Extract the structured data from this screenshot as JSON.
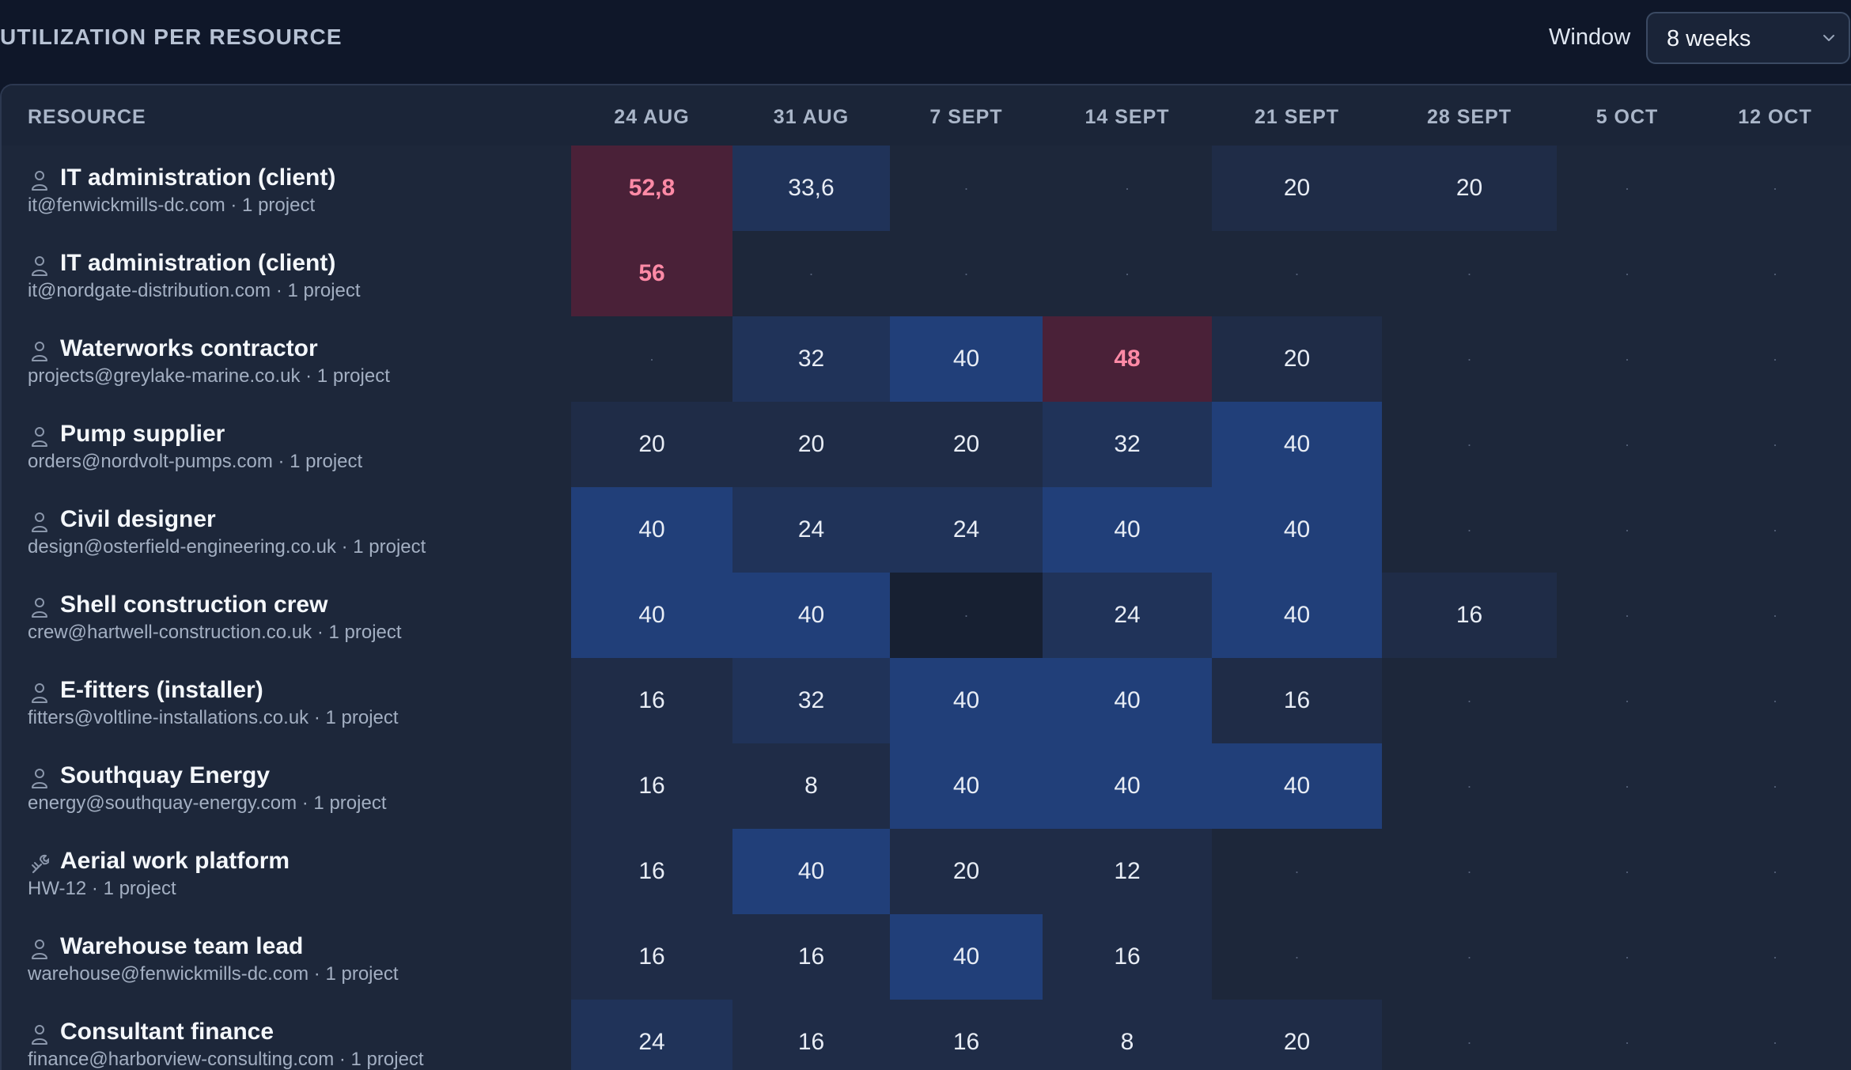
{
  "header": {
    "title": "UTILIZATION PER RESOURCE",
    "window_label": "Window",
    "window_value": "8 weeks",
    "window_icon": "chevron-down-icon"
  },
  "table": {
    "resource_header": "RESOURCE",
    "weeks": [
      "24 AUG",
      "31 AUG",
      "7 SEPT",
      "14 SEPT",
      "21 SEPT",
      "28 SEPT",
      "5 OCT",
      "12 OCT"
    ],
    "empty_marker": "·",
    "colors": {
      "empty": "#1d273a",
      "low": "#1f2c47",
      "mid": "#203359",
      "high": "#213f79",
      "over": "#4a2138",
      "over_text": "#ff8aa6"
    },
    "rows": [
      {
        "icon": "person-icon",
        "name": "IT administration (client)",
        "sub": "it@fenwickmills-dc.com · 1 project",
        "cells": [
          {
            "v": "52,8",
            "l": "over"
          },
          {
            "v": "33,6",
            "l": "mid"
          },
          {
            "v": "·",
            "l": "empty"
          },
          {
            "v": "·",
            "l": "empty"
          },
          {
            "v": "20",
            "l": "low"
          },
          {
            "v": "20",
            "l": "low"
          },
          {
            "v": "·",
            "l": "empty"
          },
          {
            "v": "·",
            "l": "empty"
          }
        ]
      },
      {
        "icon": "person-icon",
        "name": "IT administration (client)",
        "sub": "it@nordgate-distribution.com · 1 project",
        "cells": [
          {
            "v": "56",
            "l": "over"
          },
          {
            "v": "·",
            "l": "empty"
          },
          {
            "v": "·",
            "l": "empty"
          },
          {
            "v": "·",
            "l": "empty"
          },
          {
            "v": "·",
            "l": "empty"
          },
          {
            "v": "·",
            "l": "empty"
          },
          {
            "v": "·",
            "l": "empty"
          },
          {
            "v": "·",
            "l": "empty"
          }
        ]
      },
      {
        "icon": "person-icon",
        "name": "Waterworks contractor",
        "sub": "projects@greylake-marine.co.uk · 1 project",
        "cells": [
          {
            "v": "·",
            "l": "empty"
          },
          {
            "v": "32",
            "l": "mid"
          },
          {
            "v": "40",
            "l": "high"
          },
          {
            "v": "48",
            "l": "over"
          },
          {
            "v": "20",
            "l": "low"
          },
          {
            "v": "·",
            "l": "empty"
          },
          {
            "v": "·",
            "l": "empty"
          },
          {
            "v": "·",
            "l": "empty"
          }
        ]
      },
      {
        "icon": "person-icon",
        "name": "Pump supplier",
        "sub": "orders@nordvolt-pumps.com · 1 project",
        "cells": [
          {
            "v": "20",
            "l": "low"
          },
          {
            "v": "20",
            "l": "low"
          },
          {
            "v": "20",
            "l": "low"
          },
          {
            "v": "32",
            "l": "mid"
          },
          {
            "v": "40",
            "l": "high"
          },
          {
            "v": "·",
            "l": "empty"
          },
          {
            "v": "·",
            "l": "empty"
          },
          {
            "v": "·",
            "l": "empty"
          }
        ]
      },
      {
        "icon": "person-icon",
        "name": "Civil designer",
        "sub": "design@osterfield-engineering.co.uk · 1 project",
        "cells": [
          {
            "v": "40",
            "l": "high"
          },
          {
            "v": "24",
            "l": "mid"
          },
          {
            "v": "24",
            "l": "mid"
          },
          {
            "v": "40",
            "l": "high"
          },
          {
            "v": "40",
            "l": "high"
          },
          {
            "v": "·",
            "l": "empty"
          },
          {
            "v": "·",
            "l": "empty"
          },
          {
            "v": "·",
            "l": "empty"
          }
        ]
      },
      {
        "icon": "person-icon",
        "name": "Shell construction crew",
        "sub": "crew@hartwell-construction.co.uk · 1 project",
        "cells": [
          {
            "v": "40",
            "l": "high"
          },
          {
            "v": "40",
            "l": "high"
          },
          {
            "v": "·",
            "l": "blank"
          },
          {
            "v": "24",
            "l": "mid"
          },
          {
            "v": "40",
            "l": "high"
          },
          {
            "v": "16",
            "l": "low"
          },
          {
            "v": "·",
            "l": "empty"
          },
          {
            "v": "·",
            "l": "empty"
          }
        ]
      },
      {
        "icon": "person-icon",
        "name": "E-fitters (installer)",
        "sub": "fitters@voltline-installations.co.uk · 1 project",
        "cells": [
          {
            "v": "16",
            "l": "low"
          },
          {
            "v": "32",
            "l": "mid"
          },
          {
            "v": "40",
            "l": "high"
          },
          {
            "v": "40",
            "l": "high"
          },
          {
            "v": "16",
            "l": "low"
          },
          {
            "v": "·",
            "l": "empty"
          },
          {
            "v": "·",
            "l": "empty"
          },
          {
            "v": "·",
            "l": "empty"
          }
        ]
      },
      {
        "icon": "person-icon",
        "name": "Southquay Energy",
        "sub": "energy@southquay-energy.com · 1 project",
        "cells": [
          {
            "v": "16",
            "l": "low"
          },
          {
            "v": "8",
            "l": "low"
          },
          {
            "v": "40",
            "l": "high"
          },
          {
            "v": "40",
            "l": "high"
          },
          {
            "v": "40",
            "l": "high"
          },
          {
            "v": "·",
            "l": "empty"
          },
          {
            "v": "·",
            "l": "empty"
          },
          {
            "v": "·",
            "l": "empty"
          }
        ]
      },
      {
        "icon": "tool-icon",
        "name": "Aerial work platform",
        "sub": "HW-12 · 1 project",
        "cells": [
          {
            "v": "16",
            "l": "low"
          },
          {
            "v": "40",
            "l": "high"
          },
          {
            "v": "20",
            "l": "low"
          },
          {
            "v": "12",
            "l": "low"
          },
          {
            "v": "·",
            "l": "empty"
          },
          {
            "v": "·",
            "l": "empty"
          },
          {
            "v": "·",
            "l": "empty"
          },
          {
            "v": "·",
            "l": "empty"
          }
        ]
      },
      {
        "icon": "person-icon",
        "name": "Warehouse team lead",
        "sub": "warehouse@fenwickmills-dc.com · 1 project",
        "cells": [
          {
            "v": "16",
            "l": "low"
          },
          {
            "v": "16",
            "l": "low"
          },
          {
            "v": "40",
            "l": "high"
          },
          {
            "v": "16",
            "l": "low"
          },
          {
            "v": "·",
            "l": "empty"
          },
          {
            "v": "·",
            "l": "empty"
          },
          {
            "v": "·",
            "l": "empty"
          },
          {
            "v": "·",
            "l": "empty"
          }
        ]
      },
      {
        "icon": "person-icon",
        "name": "Consultant finance",
        "sub": "finance@harborview-consulting.com · 1 project",
        "cells": [
          {
            "v": "24",
            "l": "mid"
          },
          {
            "v": "16",
            "l": "low"
          },
          {
            "v": "16",
            "l": "low"
          },
          {
            "v": "8",
            "l": "low"
          },
          {
            "v": "20",
            "l": "low"
          },
          {
            "v": "·",
            "l": "empty"
          },
          {
            "v": "·",
            "l": "empty"
          },
          {
            "v": "·",
            "l": "empty"
          }
        ]
      }
    ]
  }
}
